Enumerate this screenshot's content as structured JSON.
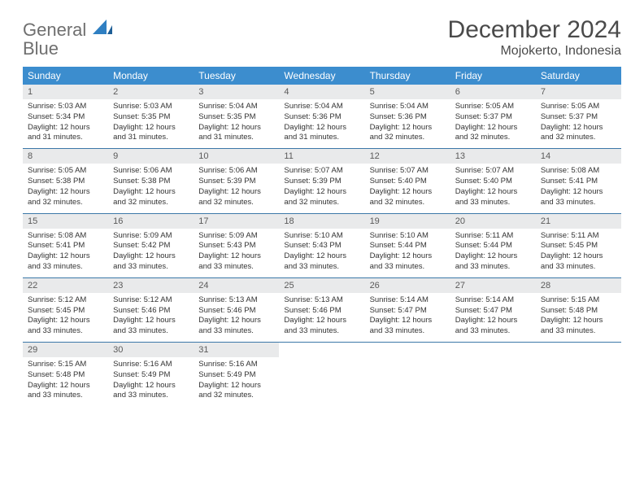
{
  "brand": {
    "word1": "General",
    "word2": "Blue"
  },
  "title": "December 2024",
  "location": "Mojokerto, Indonesia",
  "colors": {
    "header_bg": "#3c8dce",
    "header_text": "#ffffff",
    "daynum_bg": "#e9eaeb",
    "row_border": "#3c78a8",
    "title_color": "#4a4a4a",
    "logo_gray": "#6f6f6f",
    "logo_blue": "#2f7fc2"
  },
  "day_headers": [
    "Sunday",
    "Monday",
    "Tuesday",
    "Wednesday",
    "Thursday",
    "Friday",
    "Saturday"
  ],
  "weeks": [
    [
      {
        "n": "1",
        "sr": "5:03 AM",
        "ss": "5:34 PM",
        "dl": "12 hours and 31 minutes."
      },
      {
        "n": "2",
        "sr": "5:03 AM",
        "ss": "5:35 PM",
        "dl": "12 hours and 31 minutes."
      },
      {
        "n": "3",
        "sr": "5:04 AM",
        "ss": "5:35 PM",
        "dl": "12 hours and 31 minutes."
      },
      {
        "n": "4",
        "sr": "5:04 AM",
        "ss": "5:36 PM",
        "dl": "12 hours and 31 minutes."
      },
      {
        "n": "5",
        "sr": "5:04 AM",
        "ss": "5:36 PM",
        "dl": "12 hours and 32 minutes."
      },
      {
        "n": "6",
        "sr": "5:05 AM",
        "ss": "5:37 PM",
        "dl": "12 hours and 32 minutes."
      },
      {
        "n": "7",
        "sr": "5:05 AM",
        "ss": "5:37 PM",
        "dl": "12 hours and 32 minutes."
      }
    ],
    [
      {
        "n": "8",
        "sr": "5:05 AM",
        "ss": "5:38 PM",
        "dl": "12 hours and 32 minutes."
      },
      {
        "n": "9",
        "sr": "5:06 AM",
        "ss": "5:38 PM",
        "dl": "12 hours and 32 minutes."
      },
      {
        "n": "10",
        "sr": "5:06 AM",
        "ss": "5:39 PM",
        "dl": "12 hours and 32 minutes."
      },
      {
        "n": "11",
        "sr": "5:07 AM",
        "ss": "5:39 PM",
        "dl": "12 hours and 32 minutes."
      },
      {
        "n": "12",
        "sr": "5:07 AM",
        "ss": "5:40 PM",
        "dl": "12 hours and 32 minutes."
      },
      {
        "n": "13",
        "sr": "5:07 AM",
        "ss": "5:40 PM",
        "dl": "12 hours and 33 minutes."
      },
      {
        "n": "14",
        "sr": "5:08 AM",
        "ss": "5:41 PM",
        "dl": "12 hours and 33 minutes."
      }
    ],
    [
      {
        "n": "15",
        "sr": "5:08 AM",
        "ss": "5:41 PM",
        "dl": "12 hours and 33 minutes."
      },
      {
        "n": "16",
        "sr": "5:09 AM",
        "ss": "5:42 PM",
        "dl": "12 hours and 33 minutes."
      },
      {
        "n": "17",
        "sr": "5:09 AM",
        "ss": "5:43 PM",
        "dl": "12 hours and 33 minutes."
      },
      {
        "n": "18",
        "sr": "5:10 AM",
        "ss": "5:43 PM",
        "dl": "12 hours and 33 minutes."
      },
      {
        "n": "19",
        "sr": "5:10 AM",
        "ss": "5:44 PM",
        "dl": "12 hours and 33 minutes."
      },
      {
        "n": "20",
        "sr": "5:11 AM",
        "ss": "5:44 PM",
        "dl": "12 hours and 33 minutes."
      },
      {
        "n": "21",
        "sr": "5:11 AM",
        "ss": "5:45 PM",
        "dl": "12 hours and 33 minutes."
      }
    ],
    [
      {
        "n": "22",
        "sr": "5:12 AM",
        "ss": "5:45 PM",
        "dl": "12 hours and 33 minutes."
      },
      {
        "n": "23",
        "sr": "5:12 AM",
        "ss": "5:46 PM",
        "dl": "12 hours and 33 minutes."
      },
      {
        "n": "24",
        "sr": "5:13 AM",
        "ss": "5:46 PM",
        "dl": "12 hours and 33 minutes."
      },
      {
        "n": "25",
        "sr": "5:13 AM",
        "ss": "5:46 PM",
        "dl": "12 hours and 33 minutes."
      },
      {
        "n": "26",
        "sr": "5:14 AM",
        "ss": "5:47 PM",
        "dl": "12 hours and 33 minutes."
      },
      {
        "n": "27",
        "sr": "5:14 AM",
        "ss": "5:47 PM",
        "dl": "12 hours and 33 minutes."
      },
      {
        "n": "28",
        "sr": "5:15 AM",
        "ss": "5:48 PM",
        "dl": "12 hours and 33 minutes."
      }
    ],
    [
      {
        "n": "29",
        "sr": "5:15 AM",
        "ss": "5:48 PM",
        "dl": "12 hours and 33 minutes."
      },
      {
        "n": "30",
        "sr": "5:16 AM",
        "ss": "5:49 PM",
        "dl": "12 hours and 33 minutes."
      },
      {
        "n": "31",
        "sr": "5:16 AM",
        "ss": "5:49 PM",
        "dl": "12 hours and 32 minutes."
      },
      null,
      null,
      null,
      null
    ]
  ],
  "labels": {
    "sunrise": "Sunrise:",
    "sunset": "Sunset:",
    "daylight": "Daylight:"
  }
}
